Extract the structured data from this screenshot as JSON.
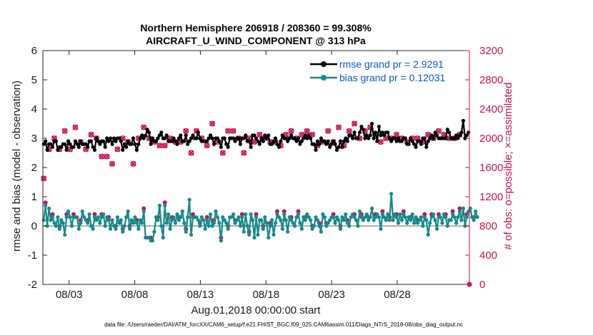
{
  "chart_data": {
    "type": "line",
    "title_line1": "Northern Hemisphere 206918 / 208360 = 99.308%",
    "title_line2": "AIRCRAFT_U_WIND_COMPONENT @ 313 hPa",
    "xlabel": "Aug.01,2018 00:00:00 start",
    "ylabel_left": "rmse and bias (model - observation)",
    "ylabel_right": "# of obs: o=possible; ×=assimilated",
    "footer": "data file: /Users/raeder/DAI/ATM_forcXX/CAM6_setup/f.e21.FHIST_BGC.f09_025.CAM6assim.011/Diags_NTrS_2018-08/obs_diag_output.nc",
    "x_range_days": [
      1,
      33.5
    ],
    "x_ticks": [
      {
        "day": 3,
        "label": "08/03"
      },
      {
        "day": 8,
        "label": "08/08"
      },
      {
        "day": 13,
        "label": "08/13"
      },
      {
        "day": 18,
        "label": "08/18"
      },
      {
        "day": 23,
        "label": "08/23"
      },
      {
        "day": 28,
        "label": "08/28"
      }
    ],
    "ylim_left": [
      -2,
      6
    ],
    "yticks_left": [
      "-2",
      "-1",
      "0",
      "1",
      "2",
      "3",
      "4",
      "5",
      "6"
    ],
    "ylim_right": [
      0,
      3200
    ],
    "yticks_right": [
      "0",
      "400",
      "800",
      "1200",
      "1600",
      "2000",
      "2400",
      "2800",
      "3200"
    ],
    "legend": [
      {
        "label": "rmse grand pr = 2.9291",
        "color": "#000000",
        "text_color": "#1155cc"
      },
      {
        "label": "bias grand pr = 0.12031",
        "color": "#138a8a",
        "text_color": "#1155cc"
      }
    ],
    "series": [
      {
        "name": "rmse",
        "color": "#000000",
        "values": [
          2.8,
          2.9,
          2.6,
          2.8,
          2.8,
          2.7,
          2.9,
          2.9,
          2.6,
          2.7,
          2.7,
          2.8,
          2.8,
          2.6,
          2.9,
          2.8,
          2.7,
          2.7,
          2.9,
          2.8,
          2.7,
          2.9,
          2.8,
          2.8,
          2.8,
          2.7,
          2.9,
          2.9,
          2.7,
          2.6,
          3.0,
          2.9,
          2.8,
          2.9,
          2.9,
          2.7,
          3.0,
          2.9,
          3.0,
          2.8,
          3.0,
          2.9,
          3.0,
          3.0,
          2.9,
          2.6,
          2.8,
          2.7,
          2.9,
          2.8,
          2.8,
          3.0,
          2.8,
          2.6,
          2.8,
          3.0,
          3.1,
          3.0,
          3.1,
          3.3,
          3.2,
          2.8,
          3.0,
          2.9,
          2.9,
          3.0,
          3.1,
          3.2,
          3.0,
          3.0,
          3.1,
          2.9,
          2.9,
          2.9,
          3.0,
          2.9,
          2.8,
          3.0,
          3.1,
          2.9,
          2.9,
          3.1,
          2.8,
          2.9,
          3.0,
          3.1,
          3.0,
          3.0,
          3.2,
          3.0,
          2.9,
          2.9,
          2.9,
          2.9,
          3.0,
          3.1,
          3.0,
          2.8,
          3.0,
          3.0,
          2.9,
          2.7,
          3.0,
          3.0,
          2.8,
          2.7,
          3.0,
          3.0,
          3.0,
          2.9,
          3.0,
          3.0,
          2.8,
          3.0,
          3.0,
          3.1,
          2.9,
          2.9,
          2.7,
          3.1,
          3.1,
          3.0,
          2.9,
          2.8,
          3.0,
          2.9,
          3.1,
          3.0,
          3.1,
          2.8,
          2.8,
          2.9,
          3.0,
          2.8,
          2.7,
          2.9,
          3.1,
          3.0,
          3.0,
          2.9,
          3.0,
          3.1,
          3.0,
          3.0,
          2.9,
          3.0,
          2.8,
          2.9,
          3.0,
          3.1,
          3.0,
          3.1,
          3.0,
          2.8,
          2.8,
          2.6,
          2.9,
          2.8,
          3.0,
          2.9,
          2.9,
          2.8,
          2.9,
          2.7,
          2.8,
          2.9,
          2.8,
          2.6,
          2.7,
          2.9,
          2.7,
          2.9,
          3.0,
          2.9,
          3.1,
          3.1,
          3.0,
          3.2,
          3.0,
          3.0,
          3.2,
          3.4,
          3.3,
          3.0,
          3.1,
          3.0,
          3.1,
          3.5,
          3.0,
          3.2,
          2.9,
          3.4,
          3.1,
          3.2,
          3.1,
          3.2,
          3.2,
          3.0,
          2.9,
          3.0,
          3.0,
          2.9,
          3.0,
          2.9,
          2.9,
          3.0,
          3.0,
          2.8,
          2.8,
          3.0,
          2.9,
          2.8,
          2.7,
          2.9,
          2.9,
          2.8,
          3.0,
          3.0,
          2.7,
          2.9,
          3.0,
          3.1,
          3.0,
          3.2,
          3.1,
          3.0,
          3.0,
          3.0,
          3.0,
          3.0,
          3.3,
          3.2,
          3.0,
          3.0,
          3.0,
          3.1,
          3.0,
          3.1,
          3.2,
          3.6,
          3.0,
          3.1,
          3.2
        ]
      },
      {
        "name": "bias",
        "color": "#138a8a",
        "values": [
          0.2,
          0.7,
          0.0,
          0.6,
          0.2,
          0.3,
          0.1,
          0.0,
          0.3,
          -0.1,
          0.2,
          0.1,
          -0.3,
          0.3,
          0.5,
          0.3,
          0.0,
          0.3,
          0.3,
          0.3,
          -0.1,
          0.1,
          0.5,
          0.3,
          0.2,
          0.1,
          0.4,
          0.0,
          -0.1,
          0.3,
          0.2,
          0.3,
          0.1,
          0.3,
          0.4,
          0.0,
          0.3,
          0.2,
          -0.1,
          0.2,
          0.0,
          -0.1,
          0.3,
          0.1,
          0.2,
          -0.2,
          0.0,
          0.3,
          0.5,
          -0.1,
          0.2,
          0.1,
          0.3,
          0.1,
          -0.1,
          0.2,
          0.1,
          0.5,
          -0.4,
          -0.4,
          -0.4,
          -0.5,
          -0.5,
          -0.2,
          0.3,
          0.2,
          0.7,
          0.0,
          -0.4,
          0.7,
          0.1,
          0.4,
          -0.1,
          0.2,
          0.3,
          0.1,
          0.4,
          0.2,
          0.3,
          0.5,
          0.1,
          -0.2,
          0.3,
          0.9,
          -0.3,
          0.3,
          0.3,
          0.3,
          0.2,
          0.0,
          0.3,
          0.2,
          -0.1,
          0.2,
          0.0,
          0.4,
          0.0,
          0.1,
          0.5,
          0.3,
          0.1,
          -0.5,
          0.3,
          0.2,
          0.1,
          -0.1,
          0.3,
          0.3,
          0.4,
          0.1,
          0.2,
          0.3,
          0.0,
          0.3,
          -0.2,
          0.4,
          0.0,
          -0.3,
          0.4,
          0.2,
          -0.4,
          0.3,
          -0.3,
          0.2,
          0.2,
          -0.1,
          0.3,
          0.1,
          -0.4,
          0.0,
          0.2,
          -0.3,
          0.1,
          0.4,
          0.3,
          0.2,
          -0.1,
          0.4,
          0.2,
          -0.2,
          0.3,
          0.2,
          0.1,
          0.0,
          0.3,
          0.4,
          0.1,
          -0.1,
          0.3,
          0.2,
          0.4,
          0.3,
          0.2,
          -0.1,
          0.0,
          0.3,
          0.2,
          0.0,
          -0.2,
          0.4,
          0.3,
          0.0,
          0.1,
          0.2,
          0.3,
          0.3,
          0.1,
          0.3,
          0.2,
          -0.1,
          0.3,
          0.2,
          0.4,
          0.1,
          0.0,
          0.3,
          0.4,
          0.3,
          0.2,
          0.0,
          0.5,
          0.3,
          0.2,
          0.3,
          0.4,
          0.2,
          0.3,
          0.6,
          0.2,
          0.3,
          0.4,
          0.3,
          -0.1,
          0.4,
          0.3,
          0.2,
          0.4,
          0.2,
          1.1,
          0.2,
          0.4,
          0.3,
          0.1,
          0.4,
          0.2,
          0.4,
          0.3,
          0.1,
          0.3,
          0.2,
          0.4,
          0.1,
          0.3,
          0.1,
          0.2,
          0.3,
          0.0,
          0.3,
          0.2,
          -0.3,
          0.1,
          0.3,
          0.4,
          0.2,
          -0.1,
          0.3,
          0.3,
          0.1,
          0.4,
          0.3,
          0.0,
          0.2,
          0.2,
          0.4,
          0.3,
          0.1,
          0.3,
          0.5,
          0.2,
          0.6,
          0.0,
          0.3,
          0.5,
          0.6,
          0.3,
          0.2,
          0.5,
          0.3
        ]
      },
      {
        "name": "obs_possible",
        "color": "#cc1155",
        "values": [
          1450,
          2050,
          2150,
          1850,
          1750,
          2000,
          2000,
          1900,
          1700,
          1850,
          1950,
          2000,
          2100,
          1900,
          1700,
          1850,
          2050,
          1900,
          2150,
          1950,
          1750,
          1950,
          2000,
          1650,
          1850,
          1900,
          2000,
          2050,
          1700,
          1900,
          2000,
          2050,
          1950,
          1750,
          1950,
          2100,
          1750,
          1850,
          2050,
          1650,
          1950,
          1800,
          1850,
          1700,
          1900,
          2000,
          2150,
          1800,
          1950,
          2100,
          2050,
          1650,
          1900,
          1900,
          2000,
          2000,
          2050,
          2150,
          2050,
          1800,
          2000,
          1900,
          2100,
          1950,
          1800,
          2100,
          1900,
          2150,
          1950,
          1900,
          1750,
          1850,
          2000,
          2250,
          2000,
          1950,
          2050,
          1650,
          1950,
          1950,
          2000,
          2100,
          2150,
          1900,
          1800,
          1950,
          2000,
          2100,
          1950,
          1900,
          2000,
          2050,
          1700,
          1900,
          2000,
          2050,
          2200,
          1950,
          1850,
          1950,
          2050,
          2050,
          1800,
          1950,
          2000,
          2100,
          2000,
          1850,
          2100,
          1900,
          1950,
          2000,
          2050,
          2150,
          1800,
          2000,
          1900,
          2000,
          2050,
          2100,
          1950,
          1900,
          1750,
          2050,
          2100,
          1950,
          2000,
          2000,
          1850,
          1950,
          1850,
          2050,
          1950,
          2000,
          2150,
          1900,
          1800,
          2000,
          2050,
          1950,
          2050,
          2100,
          1900,
          1950,
          2000,
          2100,
          1900,
          2050,
          2000,
          1950,
          2100,
          1850,
          2000,
          2050,
          2000,
          1950,
          1900,
          1850,
          2050,
          1950,
          2000,
          2050,
          2100,
          2000,
          1950,
          1950,
          2000,
          2050,
          2150,
          2000,
          2000,
          1900,
          1950,
          2000,
          2100,
          2000,
          1950,
          2200,
          2050,
          1950,
          2000,
          1800,
          1950,
          2100,
          2000,
          2050,
          2150,
          1950,
          2000,
          2050,
          2000,
          1900,
          1950,
          2000,
          2100,
          2000,
          1950,
          2050,
          2000,
          2000,
          1950,
          2050,
          2100,
          2000,
          2000,
          1850,
          2100,
          1950,
          2000,
          2050,
          2000,
          1950,
          2100,
          2000,
          2050,
          2000,
          1950,
          1850,
          2000,
          2050,
          2100,
          1950,
          2000,
          2050,
          2000,
          2100,
          1950,
          2000,
          2050,
          2000,
          1950,
          2000,
          2100,
          2050,
          2000,
          1950,
          2000,
          2050,
          2000,
          2050
        ]
      },
      {
        "name": "obs_assimilated",
        "color": "#cc1155",
        "values": [
          1450,
          2050,
          2150,
          1850,
          1750,
          2000,
          2000,
          1900,
          1700,
          1850,
          1950,
          2000,
          2100,
          1900,
          1700,
          1850,
          2050,
          1900,
          2150,
          1950,
          1750,
          1950,
          2000,
          1650,
          1850,
          1900,
          2000,
          2050,
          1700,
          1900,
          2000,
          2050,
          1950,
          1750,
          1950,
          2100,
          1750,
          1850,
          2050,
          1650,
          1950,
          1800,
          1850,
          1700,
          1900,
          2000,
          2150,
          1800,
          1950,
          2100,
          2050,
          1650,
          1900,
          1900,
          2000,
          2000,
          2050,
          2150,
          2050,
          1800,
          2000,
          1900,
          2100,
          1950,
          1800,
          2100,
          1900,
          2150,
          1950,
          1900,
          1750,
          1850,
          2000,
          2250,
          2000,
          1950,
          2050,
          1650,
          1950,
          1950,
          2000,
          2100,
          2150,
          1900,
          1800,
          1950,
          2000,
          2100,
          1950,
          1900,
          2000,
          2050,
          1700,
          1900,
          2000,
          2050,
          2200,
          1950,
          1850,
          1950,
          2050,
          2050,
          1800,
          1950,
          2000,
          2100,
          2000,
          1850,
          2100,
          1900,
          1950,
          2000,
          2050,
          2150,
          1800,
          2000,
          1900,
          2000,
          2050,
          2100,
          1950,
          1900,
          1750,
          2050,
          2100,
          1950,
          2000,
          2000,
          1850,
          1950,
          1850,
          2050,
          1950,
          2000,
          2150,
          1900,
          1800,
          2000,
          2050,
          1950,
          2050,
          2100,
          1900,
          1950,
          2000,
          2100,
          1900,
          2050,
          2000,
          1950,
          2100,
          1850,
          2000,
          2050,
          2000,
          1950,
          1900,
          1850,
          2050,
          1950,
          2000,
          2050,
          2100,
          2000,
          1950,
          1950,
          2000,
          2050,
          2150,
          2000,
          2000,
          1900,
          1950,
          2000,
          2100,
          2000,
          1950,
          2200,
          2050,
          1950,
          2000,
          1800,
          1950,
          2100,
          2000,
          2050,
          2150,
          1950,
          2000,
          2050,
          2000,
          1900,
          1950,
          2000,
          2100,
          2000,
          1950,
          2050,
          2000,
          2000,
          1950,
          2050,
          2100,
          2000,
          2000,
          1850,
          2100,
          1950,
          2000,
          2050,
          2000,
          1950,
          2100,
          2000,
          2050,
          2000,
          1950,
          1850,
          2000,
          2050,
          2100,
          1950,
          2000,
          2050,
          2000,
          2100,
          1950,
          2000,
          2050,
          2000,
          1950,
          2000,
          2100,
          2050,
          2000,
          1950,
          2000,
          2050,
          2000,
          2050
        ]
      }
    ]
  }
}
